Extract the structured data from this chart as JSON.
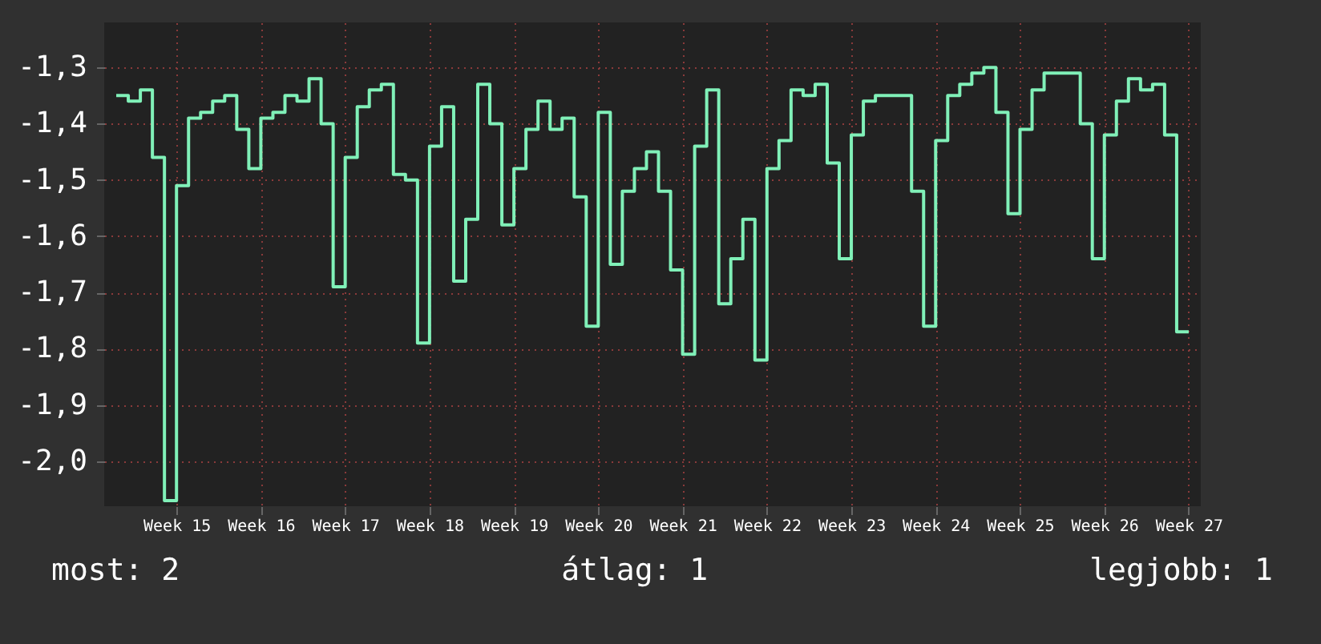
{
  "chart_data": {
    "type": "step",
    "ylim": [
      -2.08,
      -1.22
    ],
    "categories": [
      null,
      null,
      null,
      null,
      null,
      "Week 15",
      null,
      null,
      null,
      null,
      null,
      null,
      "Week 16",
      null,
      null,
      null,
      null,
      null,
      null,
      "Week 17",
      null,
      null,
      null,
      null,
      null,
      null,
      "Week 18",
      null,
      null,
      null,
      null,
      null,
      null,
      "Week 19",
      null,
      null,
      null,
      null,
      null,
      null,
      "Week 20",
      null,
      null,
      null,
      null,
      null,
      null,
      "Week 21",
      null,
      null,
      null,
      null,
      null,
      null,
      "Week 22",
      null,
      null,
      null,
      null,
      null,
      null,
      "Week 23",
      null,
      null,
      null,
      null,
      null,
      null,
      "Week 24",
      null,
      null,
      null,
      null,
      null,
      null,
      "Week 25",
      null,
      null,
      null,
      null,
      null,
      null,
      "Week 26",
      null,
      null,
      null,
      null,
      null,
      null,
      "Week 27"
    ],
    "yticks": [
      {
        "value": -1.3,
        "label": "-1,3"
      },
      {
        "value": -1.4,
        "label": "-1,4"
      },
      {
        "value": -1.5,
        "label": "-1,5"
      },
      {
        "value": -1.6,
        "label": "-1,6"
      },
      {
        "value": -1.7,
        "label": "-1,7"
      },
      {
        "value": -1.8,
        "label": "-1,8"
      },
      {
        "value": -1.9,
        "label": "-1,9"
      },
      {
        "value": -2.0,
        "label": "-2,0"
      }
    ],
    "grid": true,
    "line_style": "solid",
    "annotations": [
      "most: 2",
      "átlag: 1",
      "legjobb: 1"
    ],
    "series": [
      {
        "color": "#80f0b8",
        "values": [
          -1.35,
          -1.36,
          -1.34,
          -1.46,
          -2.07,
          -1.51,
          -1.39,
          -1.38,
          -1.36,
          -1.35,
          -1.41,
          -1.48,
          -1.39,
          -1.38,
          -1.35,
          -1.36,
          -1.32,
          -1.4,
          -1.69,
          -1.46,
          -1.37,
          -1.34,
          -1.33,
          -1.49,
          -1.5,
          -1.79,
          -1.44,
          -1.37,
          -1.68,
          -1.57,
          -1.33,
          -1.4,
          -1.58,
          -1.48,
          -1.41,
          -1.36,
          -1.41,
          -1.39,
          -1.53,
          -1.76,
          -1.38,
          -1.65,
          -1.52,
          -1.48,
          -1.45,
          -1.52,
          -1.66,
          -1.81,
          -1.44,
          -1.34,
          -1.72,
          -1.64,
          -1.57,
          -1.82,
          -1.48,
          -1.43,
          -1.34,
          -1.35,
          -1.33,
          -1.47,
          -1.64,
          -1.42,
          -1.36,
          -1.35,
          -1.35,
          -1.35,
          -1.52,
          -1.76,
          -1.43,
          -1.35,
          -1.33,
          -1.31,
          -1.3,
          -1.38,
          -1.56,
          -1.41,
          -1.34,
          -1.31,
          -1.31,
          -1.31,
          -1.4,
          -1.64,
          -1.42,
          -1.36,
          -1.32,
          -1.34,
          -1.33,
          -1.42,
          -1.77,
          -1.77
        ]
      }
    ]
  }
}
